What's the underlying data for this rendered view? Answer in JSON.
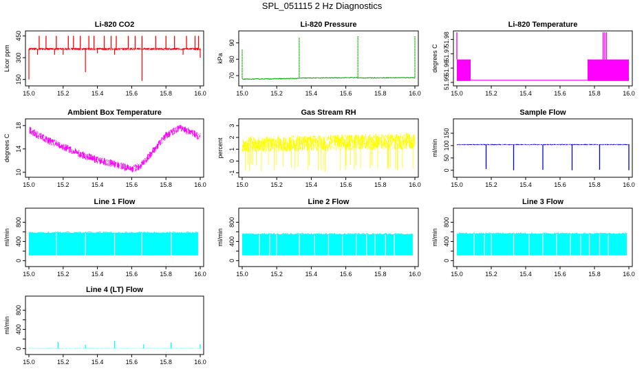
{
  "title": "SPL_051115  2 Hz Diagnostics",
  "chart_data": [
    {
      "type": "line",
      "title": "Li-820 CO2",
      "ylabel": "Licor ppm",
      "color": "#ff0000",
      "xlim": [
        15.0,
        16.0
      ],
      "xticks": [
        "15.0",
        "15.2",
        "15.4",
        "15.6",
        "15.8",
        "16.0"
      ],
      "ylim": [
        120,
        470
      ],
      "yticks": [
        150,
        300,
        450
      ],
      "yticklabels": [
        "150",
        "300",
        "450"
      ],
      "baseline": 360,
      "noise": 8,
      "band": 0,
      "spikes_up": [
        15.06,
        15.1,
        15.16,
        15.23,
        15.26,
        15.3,
        15.35,
        15.38,
        15.44,
        15.48,
        15.51,
        15.58,
        15.62,
        15.66,
        15.74,
        15.8,
        15.85,
        15.92,
        15.97,
        15.99
      ],
      "spike_up_value": 450,
      "spikes_down": [
        15.0,
        15.05,
        15.15,
        15.2,
        15.33,
        15.4,
        15.5,
        15.66,
        15.9,
        16.0
      ],
      "spike_down_values": [
        150,
        320,
        320,
        320,
        200,
        330,
        320,
        140,
        320,
        300
      ]
    },
    {
      "type": "line",
      "title": "Li-820 Pressure",
      "ylabel": "kPa",
      "color": "#00b000",
      "xlim": [
        15.0,
        16.0
      ],
      "xticks": [
        "15.0",
        "15.2",
        "15.4",
        "15.6",
        "15.8",
        "16.0"
      ],
      "ylim": [
        65,
        96
      ],
      "yticks": [
        70,
        80,
        90
      ],
      "yticklabels": [
        "70",
        "80",
        "90"
      ],
      "segments": [
        [
          15.0,
          67.8,
          15.33,
          68.3
        ],
        [
          15.33,
          68.5,
          15.67,
          68.8
        ],
        [
          15.67,
          68.6,
          16.0,
          68.8
        ]
      ],
      "spikes_up": [
        15.0,
        15.33,
        15.67,
        16.0
      ],
      "spike_up_values": [
        86,
        93,
        94,
        94
      ]
    },
    {
      "type": "line",
      "title": "Li-820 Temperature",
      "ylabel": "degrees C",
      "color": "#ff00ff",
      "xlim": [
        15.0,
        16.0
      ],
      "xticks": [
        "15.0",
        "15.2",
        "15.4",
        "15.6",
        "15.8",
        "16.0"
      ],
      "ylim": [
        51.949,
        51.9845
      ],
      "yticks": [
        51.95,
        51.96,
        51.97,
        51.98
      ],
      "yticklabels": [
        "51.95",
        "51.96",
        "51.97",
        "51.98"
      ],
      "bands": [
        [
          15.0,
          15.08,
          51.951,
          51.966
        ],
        [
          15.76,
          16.0,
          51.951,
          51.966
        ]
      ],
      "baseline_segment": [
        15.08,
        15.76,
        51.9515
      ],
      "spikes_up": [
        15.0,
        15.85,
        15.86,
        15.87
      ],
      "spike_up_value": 51.985
    },
    {
      "type": "line",
      "title": "Ambient Box Temperature",
      "ylabel": "degrees C",
      "color": "#ff00ff",
      "xlim": [
        15.0,
        16.0
      ],
      "xticks": [
        "15.0",
        "15.2",
        "15.4",
        "15.6",
        "15.8",
        "16.0"
      ],
      "ylim": [
        9.5,
        18.8
      ],
      "yticks": [
        10,
        14,
        18
      ],
      "yticklabels": [
        "10",
        "14",
        "18"
      ],
      "trend": [
        [
          15.0,
          17.3
        ],
        [
          15.1,
          15.6
        ],
        [
          15.2,
          14.4
        ],
        [
          15.3,
          13.1
        ],
        [
          15.4,
          12.1
        ],
        [
          15.5,
          11.4
        ],
        [
          15.6,
          10.5
        ],
        [
          15.65,
          11.0
        ],
        [
          15.75,
          14.5
        ],
        [
          15.8,
          16.3
        ],
        [
          15.88,
          17.6
        ],
        [
          15.95,
          16.8
        ],
        [
          16.0,
          16.0
        ]
      ],
      "band": 1.3
    },
    {
      "type": "line",
      "title": "Gas Stream RH",
      "ylabel": "percent",
      "color": "#ffff00",
      "xlim": [
        15.0,
        16.0
      ],
      "xticks": [
        "15.0",
        "15.2",
        "15.4",
        "15.6",
        "15.8",
        "16.0"
      ],
      "ylim": [
        -1.2,
        3.4
      ],
      "yticks": [
        -1,
        0,
        1,
        2,
        3
      ],
      "yticklabels": [
        "-1",
        "0",
        "1",
        "2",
        "3"
      ],
      "trend": [
        [
          15.0,
          1.4
        ],
        [
          16.0,
          1.7
        ]
      ],
      "band": 1.4
    },
    {
      "type": "line",
      "title": "Sample Flow",
      "ylabel": "ml/min",
      "color": "#0000dd",
      "xlim": [
        15.0,
        16.0
      ],
      "xticks": [
        "15.0",
        "15.2",
        "15.4",
        "15.6",
        "15.8",
        "16.0"
      ],
      "ylim": [
        -20,
        200
      ],
      "yticks": [
        0,
        50,
        100,
        150
      ],
      "yticklabels": [
        "0",
        "50",
        "100",
        "150"
      ],
      "trend": [
        [
          15.0,
          104
        ],
        [
          16.0,
          104
        ]
      ],
      "band": 4,
      "spikes_down": [
        15.17,
        15.33,
        15.5,
        15.67,
        15.83,
        16.0
      ],
      "spike_down_values": [
        5,
        0,
        2,
        0,
        2,
        0
      ]
    },
    {
      "type": "line",
      "title": "Line 1 Flow",
      "ylabel": "ml/min",
      "color": "#00ffff",
      "xlim": [
        15.0,
        16.0
      ],
      "xticks": [
        "15.0",
        "15.2",
        "15.4",
        "15.6",
        "15.8",
        "16.0"
      ],
      "ylim": [
        -80,
        1050
      ],
      "yticks": [
        0,
        200,
        400,
        600,
        800
      ],
      "yticklabels": [
        "0",
        "",
        "400",
        "",
        "800"
      ],
      "block": [
        15.0,
        15.99,
        110,
        580
      ],
      "gaps": [
        15.16,
        15.33,
        15.5,
        15.66,
        15.83,
        15.99
      ]
    },
    {
      "type": "line",
      "title": "Line 2 Flow",
      "ylabel": "ml/min",
      "color": "#00ffff",
      "xlim": [
        15.0,
        16.0
      ],
      "xticks": [
        "15.0",
        "15.2",
        "15.4",
        "15.6",
        "15.8",
        "16.0"
      ],
      "ylim": [
        -80,
        1050
      ],
      "yticks": [
        0,
        200,
        400,
        600,
        800
      ],
      "yticklabels": [
        "0",
        "",
        "400",
        "",
        "800"
      ],
      "block": [
        15.0,
        15.99,
        110,
        550
      ],
      "gaps": [
        15.1,
        15.16,
        15.2,
        15.33,
        15.42,
        15.5,
        15.58,
        15.66,
        15.72,
        15.77,
        15.83,
        15.88,
        15.99
      ]
    },
    {
      "type": "line",
      "title": "Line 3 Flow",
      "ylabel": "ml/min",
      "color": "#00ffff",
      "xlim": [
        15.0,
        16.0
      ],
      "xticks": [
        "15.0",
        "15.2",
        "15.4",
        "15.6",
        "15.8",
        "16.0"
      ],
      "ylim": [
        -80,
        1050
      ],
      "yticks": [
        0,
        200,
        400,
        600,
        800
      ],
      "yticklabels": [
        "0",
        "",
        "400",
        "",
        "800"
      ],
      "block": [
        15.0,
        15.99,
        110,
        560
      ],
      "gaps": [
        15.1,
        15.16,
        15.2,
        15.33,
        15.42,
        15.5,
        15.58,
        15.66,
        15.72,
        15.77,
        15.83,
        15.88,
        15.99
      ]
    },
    {
      "type": "line",
      "title": "Line 4 (LT) Flow",
      "ylabel": "ml/min",
      "color": "#00ffff",
      "xlim": [
        15.0,
        16.0
      ],
      "xticks": [
        "15.0",
        "15.2",
        "15.4",
        "15.6",
        "15.8",
        "16.0"
      ],
      "ylim": [
        -80,
        1050
      ],
      "yticks": [
        0,
        200,
        400,
        600,
        800
      ],
      "yticklabels": [
        "0",
        "",
        "400",
        "",
        "800"
      ],
      "trend": [
        [
          15.0,
          5
        ],
        [
          16.0,
          5
        ]
      ],
      "band": 10,
      "spikes_up": [
        15.17,
        15.33,
        15.5,
        15.67,
        15.83,
        16.0
      ],
      "spike_up_values": [
        140,
        80,
        160,
        90,
        130,
        90
      ]
    }
  ]
}
